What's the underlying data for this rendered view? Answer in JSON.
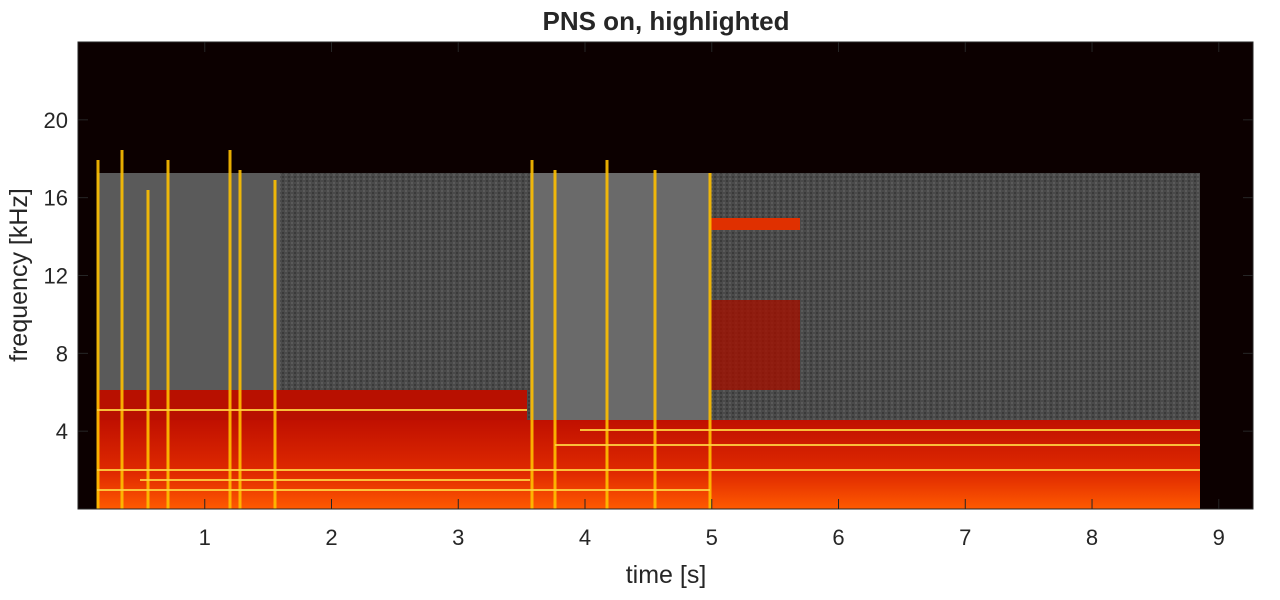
{
  "chart_data": {
    "type": "spectrogram",
    "title": "PNS on, highlighted",
    "xlabel": "time [s]",
    "ylabel": "frequency [kHz]",
    "xlim": [
      0,
      9.27
    ],
    "xticks": [
      1,
      2,
      3,
      4,
      5,
      6,
      7,
      8,
      9
    ],
    "ylim": [
      0,
      24
    ],
    "yticks": [
      4,
      8,
      12,
      16,
      20
    ]
  }
}
